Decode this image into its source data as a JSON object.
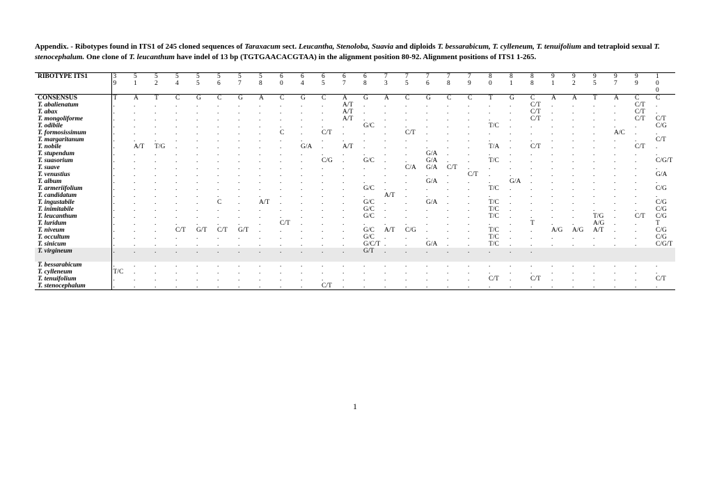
{
  "caption_parts": [
    {
      "t": "Appendix. - Ribotypes found in ITS1 of 245 cloned sequences of ",
      "i": false
    },
    {
      "t": "Taraxacum",
      "i": true
    },
    {
      "t": " sect. ",
      "i": false
    },
    {
      "t": "Leucantha, Stenoloba, Suavia",
      "i": true
    },
    {
      "t": " and diploids ",
      "i": false
    },
    {
      "t": "T. bessarabicum, T. cylleneum, T. tenuifolium",
      "i": true
    },
    {
      "t": " and tetraploid sexual ",
      "i": false
    },
    {
      "t": "T. stenocephalum.",
      "i": true
    },
    {
      "t": " One clone of ",
      "i": false
    },
    {
      "t": "T. leucanthum",
      "i": true
    },
    {
      "t": " have indel of 13 bp (TGTGAACACGTAA) in the alignment position 80-92. Alignment positions of ITS1 1-265.",
      "i": false
    }
  ],
  "header_label": "RIBOTYPE ITS1",
  "positions_top": [
    "3",
    "5",
    "5",
    "5",
    "5",
    "5",
    "5",
    "5",
    "6",
    "6",
    "6",
    "6",
    "6",
    "7",
    "7",
    "7",
    "7",
    "7",
    "8",
    "8",
    "8",
    "9",
    "9",
    "9",
    "9",
    "9",
    "1"
  ],
  "positions_bot": [
    "9",
    "1",
    "2",
    "4",
    "5",
    "6",
    "7",
    "8",
    "0",
    "4",
    "5",
    "7",
    "8",
    "3",
    "5",
    "6",
    "8",
    "9",
    "0",
    "1",
    "8",
    "1",
    "2",
    "5",
    "7",
    "9",
    "0"
  ],
  "positions_extra": [
    "",
    "",
    "",
    "",
    "",
    "",
    "",
    "",
    "",
    "",
    "",
    "",
    "",
    "",
    "",
    "",
    "",
    "",
    "",
    "",
    "",
    "",
    "",
    "",
    "",
    "",
    "0"
  ],
  "consensus_label": "CONSENSUS",
  "consensus": [
    "T",
    "A",
    "T",
    "C",
    "G",
    "C",
    "G",
    "A",
    "C",
    "G",
    "C",
    "A",
    "G",
    "A",
    "C",
    "G",
    "C",
    "C",
    "T",
    "G",
    "C",
    "A",
    "A",
    "T",
    "A",
    "C",
    "C"
  ],
  "species_rows": [
    {
      "name": "T. abalienatum",
      "vals": [
        ".",
        ".",
        ".",
        ".",
        ".",
        ".",
        ".",
        ".",
        ".",
        ".",
        ".",
        "A/T",
        ".",
        ".",
        ".",
        ".",
        ".",
        ".",
        ".",
        ".",
        "C/T",
        ".",
        ".",
        ".",
        ".",
        "C/T",
        "."
      ]
    },
    {
      "name": "T. abax",
      "vals": [
        ".",
        ".",
        ".",
        ".",
        ".",
        ".",
        ".",
        ".",
        ".",
        ".",
        ".",
        "A/T",
        ".",
        ".",
        ".",
        ".",
        ".",
        ".",
        ".",
        ".",
        "C/T",
        ".",
        ".",
        ".",
        ".",
        "C/T",
        "."
      ]
    },
    {
      "name": "T. mongoliforme",
      "vals": [
        ".",
        ".",
        ".",
        ".",
        ".",
        ".",
        ".",
        ".",
        ".",
        ".",
        ".",
        "A/T",
        ".",
        ".",
        ".",
        ".",
        ".",
        ".",
        ".",
        ".",
        "C/T",
        ".",
        ".",
        ".",
        ".",
        "C/T",
        "C/T"
      ]
    },
    {
      "name": "T. odibile",
      "vals": [
        ".",
        ".",
        ".",
        ".",
        ".",
        ".",
        ".",
        ".",
        ".",
        ".",
        ".",
        ".",
        "G/C",
        ".",
        ".",
        ".",
        ".",
        ".",
        "T/C",
        ".",
        ".",
        ".",
        ".",
        ".",
        ".",
        ".",
        "C/G"
      ]
    },
    {
      "name": "T. formosissimum",
      "vals": [
        ".",
        ".",
        ".",
        ".",
        ".",
        ".",
        ".",
        ".",
        "C",
        ".",
        "C/T",
        ".",
        ".",
        ".",
        "C/T",
        ".",
        ".",
        ".",
        ".",
        ".",
        ".",
        ".",
        ".",
        ".",
        "A/C",
        ".",
        "."
      ]
    },
    {
      "name": "T. margaritanum",
      "vals": [
        ".",
        ".",
        ".",
        ".",
        ".",
        ".",
        ".",
        ".",
        ".",
        ".",
        ".",
        ".",
        ".",
        ".",
        ".",
        ".",
        ".",
        ".",
        ".",
        ".",
        ".",
        ".",
        ".",
        ".",
        ".",
        ".",
        "C/T"
      ]
    },
    {
      "name": "T. nobile",
      "vals": [
        ".",
        "A/T",
        "T/G",
        ".",
        ".",
        ".",
        ".",
        ".",
        ".",
        "G/A",
        ".",
        "A/T",
        ".",
        ".",
        ".",
        ".",
        ".",
        ".",
        "T/A",
        ".",
        "C/T",
        ".",
        ".",
        ".",
        ".",
        "C/T",
        "."
      ]
    },
    {
      "name": "T. stupendum",
      "vals": [
        ".",
        ".",
        ".",
        ".",
        ".",
        ".",
        ".",
        ".",
        ".",
        ".",
        ".",
        ".",
        ".",
        ".",
        ".",
        "G/A",
        ".",
        ".",
        ".",
        ".",
        ".",
        ".",
        ".",
        ".",
        ".",
        ".",
        "."
      ]
    },
    {
      "name": "T. suasorium",
      "vals": [
        ".",
        ".",
        ".",
        ".",
        ".",
        ".",
        ".",
        ".",
        ".",
        ".",
        "C/G",
        ".",
        "G/C",
        ".",
        ".",
        "G/A",
        ".",
        ".",
        "T/C",
        ".",
        ".",
        ".",
        ".",
        ".",
        ".",
        ".",
        "C/G/T"
      ]
    },
    {
      "name": "T. suave",
      "vals": [
        ".",
        ".",
        ".",
        ".",
        ".",
        ".",
        ".",
        ".",
        ".",
        ".",
        ".",
        ".",
        ".",
        ".",
        "C/A",
        "G/A",
        "C/T",
        ".",
        ".",
        ".",
        ".",
        ".",
        ".",
        ".",
        ".",
        ".",
        "."
      ]
    },
    {
      "name": "T. venustius",
      "vals": [
        ".",
        ".",
        ".",
        ".",
        ".",
        ".",
        ".",
        ".",
        ".",
        ".",
        ".",
        ".",
        ".",
        ".",
        ".",
        ".",
        ".",
        "C/T",
        ".",
        ".",
        ".",
        ".",
        ".",
        ".",
        ".",
        ".",
        "G/A"
      ]
    },
    {
      "name": "T. album",
      "vals": [
        ".",
        ".",
        ".",
        ".",
        ".",
        ".",
        ".",
        ".",
        ".",
        ".",
        ".",
        ".",
        ".",
        ".",
        ".",
        "G/A",
        ".",
        ".",
        ".",
        "G/A",
        ".",
        ".",
        ".",
        ".",
        ".",
        ".",
        "."
      ]
    },
    {
      "name": "T. armeriifolium",
      "vals": [
        ".",
        ".",
        ".",
        ".",
        ".",
        ".",
        ".",
        ".",
        ".",
        ".",
        ".",
        ".",
        "G/C",
        ".",
        ".",
        ".",
        ".",
        ".",
        "T/C",
        ".",
        ".",
        ".",
        ".",
        ".",
        ".",
        ".",
        "C/G"
      ]
    },
    {
      "name": "T. candidatum",
      "vals": [
        ".",
        ".",
        ".",
        ".",
        ".",
        ".",
        ".",
        ".",
        ".",
        ".",
        ".",
        ".",
        ".",
        "A/T",
        ".",
        ".",
        ".",
        ".",
        ".",
        ".",
        ".",
        ".",
        ".",
        ".",
        ".",
        ".",
        "."
      ]
    },
    {
      "name": "T. ingustabile",
      "vals": [
        ".",
        ".",
        ".",
        ".",
        ".",
        "C",
        ".",
        "A/T",
        ".",
        ".",
        ".",
        ".",
        "G/C",
        ".",
        ".",
        "G/A",
        ".",
        ".",
        "T/C",
        ".",
        ".",
        ".",
        ".",
        ".",
        ".",
        ".",
        "C/G"
      ]
    },
    {
      "name": "T. inimitabile",
      "vals": [
        ".",
        ".",
        ".",
        ".",
        ".",
        ".",
        ".",
        ".",
        ".",
        ".",
        ".",
        ".",
        "G/C",
        ".",
        ".",
        ".",
        ".",
        ".",
        "T/C",
        ".",
        ".",
        ".",
        ".",
        ".",
        ".",
        ".",
        "C/G"
      ]
    },
    {
      "name": "T. leucanthum",
      "vals": [
        ".",
        ".",
        ".",
        ".",
        ".",
        ".",
        ".",
        ".",
        ".",
        ".",
        ".",
        ".",
        "G/C",
        ".",
        ".",
        ".",
        ".",
        ".",
        "T/C",
        ".",
        ".",
        ".",
        ".",
        "T/G",
        ".",
        "C/T",
        "C/G"
      ]
    },
    {
      "name": "T. luridum",
      "vals": [
        ".",
        ".",
        ".",
        ".",
        ".",
        ".",
        ".",
        ".",
        "C/T",
        ".",
        ".",
        ".",
        ".",
        ".",
        ".",
        ".",
        ".",
        ".",
        ".",
        ".",
        "T",
        ".",
        ".",
        "A/G",
        ".",
        ".",
        "T"
      ]
    },
    {
      "name": "T. niveum",
      "vals": [
        ".",
        ".",
        ".",
        "C/T",
        "G/T",
        "C/T",
        "G/T",
        ".",
        ".",
        ".",
        ".",
        ".",
        "G/C",
        "A/T",
        "C/G",
        ".",
        ".",
        ".",
        "T/C",
        ".",
        ".",
        "A/G",
        "A/G",
        "A/T",
        ".",
        ".",
        "C/G"
      ]
    },
    {
      "name": "T. occultum",
      "vals": [
        ".",
        ".",
        ".",
        ".",
        ".",
        ".",
        ".",
        ".",
        ".",
        ".",
        ".",
        ".",
        "G/C",
        ".",
        ".",
        ".",
        ".",
        ".",
        "T/C",
        ".",
        ".",
        ".",
        ".",
        ".",
        ".",
        ".",
        "C/G"
      ]
    },
    {
      "name": "T. sinicum",
      "vals": [
        ".",
        ".",
        ".",
        ".",
        ".",
        ".",
        ".",
        ".",
        ".",
        ".",
        ".",
        ".",
        "G/C/T",
        ".",
        ".",
        "G/A",
        ".",
        ".",
        "T/C",
        ".",
        ".",
        ".",
        ".",
        ".",
        ".",
        ".",
        "C/G/T"
      ]
    },
    {
      "name": "T. virgineum",
      "vals": [
        ".",
        ".",
        ".",
        ".",
        ".",
        ".",
        ".",
        ".",
        ".",
        ".",
        ".",
        ".",
        "G/T",
        ".",
        ".",
        ".",
        ".",
        ".",
        ".",
        ".",
        ".",
        "",
        "",
        "",
        "",
        "",
        ""
      ]
    }
  ],
  "section2_rows": [
    {
      "name": "T. bessarabicum",
      "vals": [
        ".",
        ".",
        ".",
        ".",
        ".",
        ".",
        ".",
        ".",
        ".",
        ".",
        ".",
        ".",
        ".",
        ".",
        ".",
        ".",
        ".",
        ".",
        ".",
        ".",
        ".",
        ".",
        ".",
        ".",
        ".",
        ".",
        "."
      ]
    },
    {
      "name": "T. cylleneum",
      "vals": [
        "T/C",
        ".",
        ".",
        ".",
        ".",
        ".",
        ".",
        ".",
        ".",
        ".",
        ".",
        ".",
        ".",
        ".",
        ".",
        ".",
        ".",
        ".",
        ".",
        ".",
        ".",
        ".",
        ".",
        ".",
        ".",
        ".",
        "."
      ]
    },
    {
      "name": "T. tenuifolium",
      "vals": [
        ".",
        ".",
        ".",
        ".",
        ".",
        ".",
        ".",
        ".",
        ".",
        ".",
        ".",
        ".",
        ".",
        ".",
        ".",
        ".",
        ".",
        ".",
        "C/T",
        ".",
        "C/T",
        ".",
        ".",
        ".",
        ".",
        ".",
        "C/T"
      ]
    },
    {
      "name": "T. stenocephalum",
      "vals": [
        ".",
        ".",
        ".",
        ".",
        ".",
        ".",
        ".",
        ".",
        ".",
        ".",
        "C/T",
        ".",
        ".",
        ".",
        ".",
        ".",
        ".",
        ".",
        ".",
        ".",
        ".",
        ".",
        ".",
        ".",
        ".",
        ".",
        "."
      ]
    }
  ],
  "page_number": "1"
}
